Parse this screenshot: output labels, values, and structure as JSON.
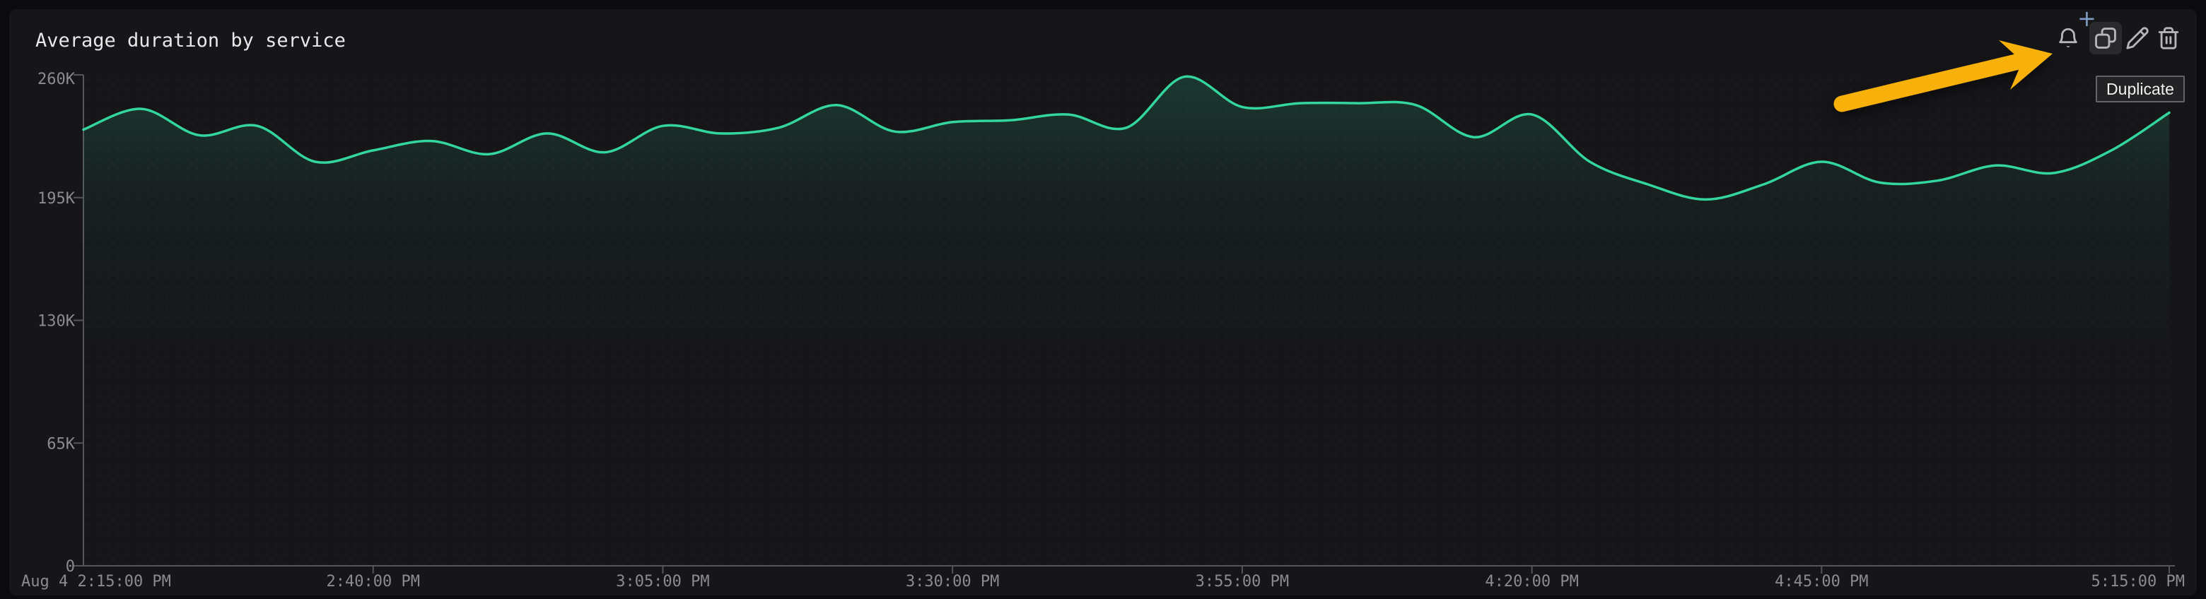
{
  "page": {
    "background": "#0b0b0d",
    "panel_background": "#161619"
  },
  "panel": {
    "title": "Average duration by service"
  },
  "toolbar": {
    "tooltip": "Duplicate",
    "buttons": [
      {
        "id": "create-monitor",
        "icon": "bell-plus-icon"
      },
      {
        "id": "duplicate",
        "icon": "copy-icon",
        "state": "hovered"
      },
      {
        "id": "edit",
        "icon": "pencil-icon"
      },
      {
        "id": "delete",
        "icon": "trash-icon"
      }
    ]
  },
  "annotation": {
    "type": "arrow",
    "color": "#f8b10b",
    "target": "duplicate-button"
  },
  "chart_data": {
    "type": "line",
    "title": "Average duration by service",
    "series": [
      {
        "name": "Average duration",
        "color": "#33d69f",
        "x_minutes": [
          0,
          5,
          10,
          15,
          20,
          25,
          30,
          35,
          40,
          45,
          50,
          55,
          60,
          65,
          70,
          75,
          80,
          85,
          90,
          95,
          100,
          105,
          110,
          115,
          120,
          125,
          130,
          135,
          140,
          145,
          150,
          155,
          160,
          165,
          170,
          175,
          180
        ],
        "times": [
          "2:15 PM",
          "2:20 PM",
          "2:25 PM",
          "2:30 PM",
          "2:35 PM",
          "2:40 PM",
          "2:45 PM",
          "2:50 PM",
          "2:55 PM",
          "3:00 PM",
          "3:05 PM",
          "3:10 PM",
          "3:15 PM",
          "3:20 PM",
          "3:25 PM",
          "3:30 PM",
          "3:35 PM",
          "3:40 PM",
          "3:45 PM",
          "3:50 PM",
          "3:55 PM",
          "4:00 PM",
          "4:05 PM",
          "4:10 PM",
          "4:15 PM",
          "4:20 PM",
          "4:25 PM",
          "4:30 PM",
          "4:35 PM",
          "4:40 PM",
          "4:45 PM",
          "4:50 PM",
          "4:55 PM",
          "5:00 PM",
          "5:05 PM",
          "5:10 PM",
          "5:15 PM"
        ],
        "values": [
          231000,
          242000,
          228000,
          233000,
          214000,
          220000,
          225000,
          218000,
          229000,
          219000,
          233000,
          229000,
          232000,
          244000,
          230000,
          235000,
          236000,
          239000,
          232000,
          259000,
          243000,
          245000,
          245000,
          244000,
          227000,
          239000,
          214000,
          202000,
          194000,
          202000,
          214000,
          203000,
          204000,
          212000,
          208000,
          220000,
          240000
        ]
      }
    ],
    "xticks": [
      {
        "label": "Aug 4 2:15:00 PM",
        "min": 0,
        "align": "start"
      },
      {
        "label": "2:40:00 PM",
        "min": 25
      },
      {
        "label": "3:05:00 PM",
        "min": 50
      },
      {
        "label": "3:30:00 PM",
        "min": 75
      },
      {
        "label": "3:55:00 PM",
        "min": 100
      },
      {
        "label": "4:20:00 PM",
        "min": 125
      },
      {
        "label": "4:45:00 PM",
        "min": 150
      },
      {
        "label": "5:15:00 PM",
        "min": 180,
        "align": "end"
      }
    ],
    "yticks": [
      {
        "label": "0",
        "value": 0
      },
      {
        "label": "65K",
        "value": 65000
      },
      {
        "label": "130K",
        "value": 130000
      },
      {
        "label": "195K",
        "value": 195000
      },
      {
        "label": "260K",
        "value": 260000
      }
    ],
    "ylim": [
      0,
      260000
    ],
    "xlim_minutes": [
      0,
      180
    ],
    "grid": false,
    "legend": "none",
    "axis_color": "#55555b",
    "label_color": "#8b8b90"
  }
}
